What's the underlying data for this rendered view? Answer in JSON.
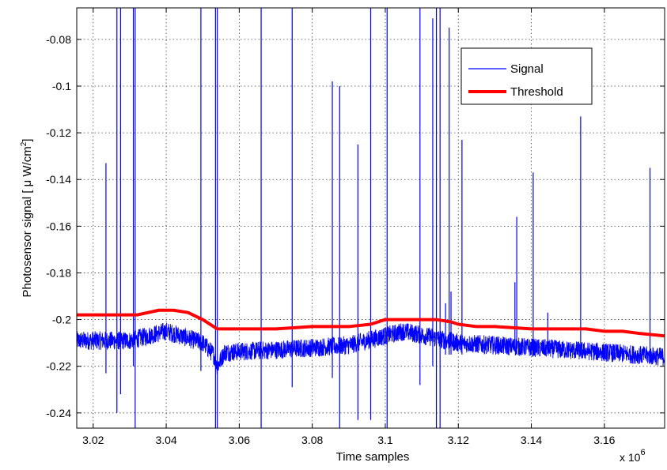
{
  "chart_data": {
    "type": "line",
    "xlabel": "Time samples",
    "ylabel_main": "Photosensor signal  [  μ W/cm",
    "ylabel_sup": "2",
    "ylabel_end": "]",
    "x_multiplier": "x 10",
    "x_multiplier_exp": "6",
    "xlim": [
      3.0155,
      3.1765
    ],
    "ylim": [
      -0.2465,
      -0.0665
    ],
    "grid": true,
    "legend_position": "top-right",
    "xticks": [
      3.02,
      3.04,
      3.06,
      3.08,
      3.1,
      3.12,
      3.14,
      3.16
    ],
    "xtick_labels": [
      "3.02",
      "3.04",
      "3.06",
      "3.08",
      "3.1",
      "3.12",
      "3.14",
      "3.16"
    ],
    "yticks": [
      -0.08,
      -0.1,
      -0.12,
      -0.14,
      -0.16,
      -0.18,
      -0.2,
      -0.22,
      -0.24
    ],
    "ytick_labels": [
      "-0.08",
      "-0.1",
      "-0.12",
      "-0.14",
      "-0.16",
      "-0.18",
      "-0.2",
      "-0.22",
      "-0.24"
    ],
    "series": [
      {
        "name": "Signal",
        "color": "#0000ff",
        "baseline": {
          "x": [
            3.0155,
            3.03,
            3.04,
            3.05,
            3.053,
            3.054,
            3.056,
            3.07,
            3.09,
            3.105,
            3.12,
            3.14,
            3.16,
            3.1765
          ],
          "y": [
            -0.209,
            -0.209,
            -0.205,
            -0.21,
            -0.215,
            -0.22,
            -0.214,
            -0.213,
            -0.211,
            -0.205,
            -0.21,
            -0.212,
            -0.214,
            -0.216
          ]
        },
        "noise_amplitude": 0.004,
        "spikes": [
          {
            "x": 3.0235,
            "y_min": -0.223,
            "y_max": -0.133
          },
          {
            "x": 3.0265,
            "y_min": -0.24,
            "y_max": -0.0665
          },
          {
            "x": 3.0275,
            "y_min": -0.232,
            "y_max": -0.0665
          },
          {
            "x": 3.031,
            "y_min": -0.22,
            "y_max": -0.0665
          },
          {
            "x": 3.0315,
            "y_min": -0.2465,
            "y_max": -0.0665
          },
          {
            "x": 3.0495,
            "y_min": -0.222,
            "y_max": -0.0665
          },
          {
            "x": 3.0535,
            "y_min": -0.2465,
            "y_max": -0.0665
          },
          {
            "x": 3.054,
            "y_min": -0.2465,
            "y_max": -0.0665
          },
          {
            "x": 3.066,
            "y_min": -0.2465,
            "y_max": -0.0665
          },
          {
            "x": 3.0745,
            "y_min": -0.229,
            "y_max": -0.0665
          },
          {
            "x": 3.0855,
            "y_min": -0.225,
            "y_max": -0.098
          },
          {
            "x": 3.0875,
            "y_min": -0.2465,
            "y_max": -0.1
          },
          {
            "x": 3.0925,
            "y_min": -0.243,
            "y_max": -0.125
          },
          {
            "x": 3.096,
            "y_min": -0.243,
            "y_max": -0.0665
          },
          {
            "x": 3.1005,
            "y_min": -0.2465,
            "y_max": -0.0665
          },
          {
            "x": 3.1095,
            "y_min": -0.228,
            "y_max": -0.0665
          },
          {
            "x": 3.113,
            "y_min": -0.22,
            "y_max": -0.071
          },
          {
            "x": 3.114,
            "y_min": -0.2465,
            "y_max": -0.0665
          },
          {
            "x": 3.115,
            "y_min": -0.2465,
            "y_max": -0.0665
          },
          {
            "x": 3.1165,
            "y_min": -0.215,
            "y_max": -0.193
          },
          {
            "x": 3.1175,
            "y_min": -0.215,
            "y_max": -0.075
          },
          {
            "x": 3.118,
            "y_min": -0.215,
            "y_max": -0.188
          },
          {
            "x": 3.121,
            "y_min": -0.215,
            "y_max": -0.123
          },
          {
            "x": 3.1355,
            "y_min": -0.212,
            "y_max": -0.184
          },
          {
            "x": 3.136,
            "y_min": -0.212,
            "y_max": -0.156
          },
          {
            "x": 3.1405,
            "y_min": -0.212,
            "y_max": -0.137
          },
          {
            "x": 3.1445,
            "y_min": -0.212,
            "y_max": -0.197
          },
          {
            "x": 3.1535,
            "y_min": -0.215,
            "y_max": -0.113
          },
          {
            "x": 3.1725,
            "y_min": -0.217,
            "y_max": -0.135
          }
        ]
      },
      {
        "name": "Threshold",
        "color": "#ff0000",
        "x": [
          3.0155,
          3.024,
          3.032,
          3.038,
          3.042,
          3.046,
          3.05,
          3.054,
          3.06,
          3.07,
          3.08,
          3.09,
          3.096,
          3.1,
          3.105,
          3.11,
          3.114,
          3.118,
          3.12,
          3.125,
          3.13,
          3.14,
          3.15,
          3.155,
          3.16,
          3.165,
          3.17,
          3.1765
        ],
        "y": [
          -0.198,
          -0.198,
          -0.198,
          -0.196,
          -0.196,
          -0.197,
          -0.2,
          -0.204,
          -0.204,
          -0.204,
          -0.203,
          -0.203,
          -0.202,
          -0.2,
          -0.2,
          -0.2,
          -0.2,
          -0.201,
          -0.202,
          -0.203,
          -0.203,
          -0.204,
          -0.204,
          -0.204,
          -0.205,
          -0.205,
          -0.206,
          -0.207
        ]
      }
    ]
  }
}
